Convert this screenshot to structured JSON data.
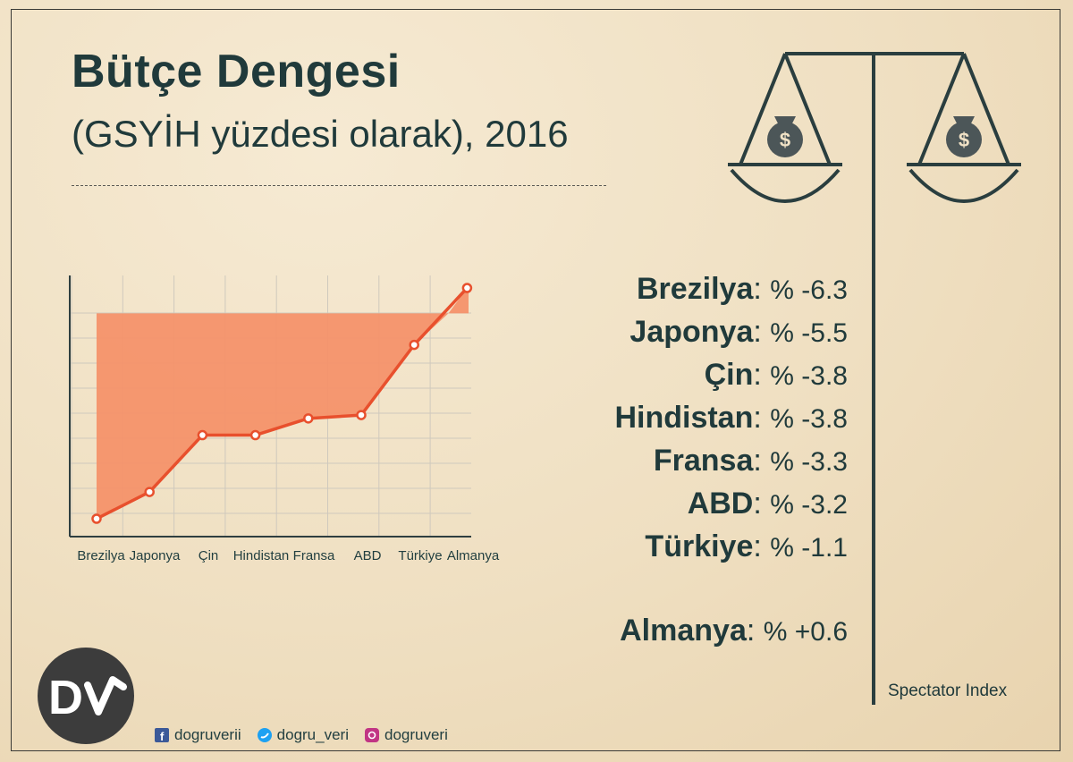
{
  "header": {
    "title": "Bütçe Dengesi",
    "subtitle": "(GSYİH yüzdesi olarak), 2016"
  },
  "chart_data": {
    "type": "area",
    "categories": [
      "Brezilya",
      "Japonya",
      "Çin",
      "Hindistan",
      "Fransa",
      "ABD",
      "Türkiye",
      "Almanya"
    ],
    "values": [
      -6.3,
      -5.5,
      -3.8,
      -3.8,
      -3.3,
      -3.2,
      -1.1,
      0.6
    ],
    "baseline": 0,
    "ylim": [
      -6.3,
      0.6
    ],
    "grid": true,
    "colors": {
      "area": "#f4926a",
      "line": "#e8502d"
    }
  },
  "values_list": [
    {
      "country": "Brezilya",
      "amount": "% -6.3"
    },
    {
      "country": "Japonya",
      "amount": "% -5.5"
    },
    {
      "country": "Çin",
      "amount": "% -3.8"
    },
    {
      "country": "Hindistan",
      "amount": "% -3.8"
    },
    {
      "country": "Fransa",
      "amount": "% -3.3"
    },
    {
      "country": "ABD",
      "amount": "% -3.2"
    },
    {
      "country": "Türkiye",
      "amount": "% -1.1"
    },
    {
      "country": "Almanya",
      "amount": "% +0.6"
    }
  ],
  "source": "Spectator Index",
  "social": [
    {
      "icon": "facebook-icon",
      "handle": "dogruverii",
      "color": "#3b5998"
    },
    {
      "icon": "twitter-icon",
      "handle": "dogru_veri",
      "color": "#1da1f2"
    },
    {
      "icon": "instagram-icon",
      "handle": "dogruveri",
      "color": "#c13584"
    }
  ],
  "logo": {
    "text": "DV",
    "color": "#3c3c3c"
  },
  "icons": [
    "balance-scale-icon",
    "money-bag-icon"
  ]
}
